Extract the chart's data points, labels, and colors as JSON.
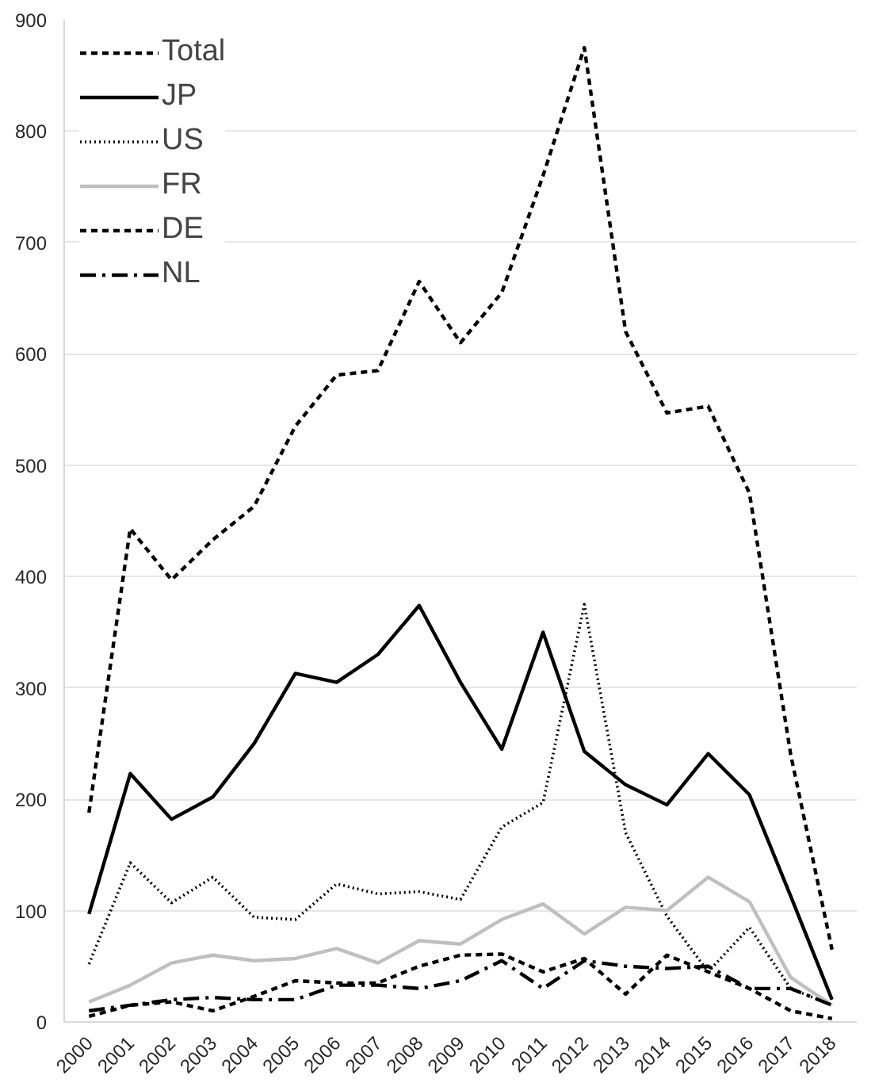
{
  "chart_data": {
    "type": "line",
    "categories": [
      "2000",
      "2001",
      "2002",
      "2003",
      "2004",
      "2005",
      "2006",
      "2007",
      "2008",
      "2009",
      "2010",
      "2011",
      "2012",
      "2013",
      "2014",
      "2015",
      "2016",
      "2017",
      "2018"
    ],
    "series": [
      {
        "name": "Total",
        "color": "#000000",
        "line_style": "dashed",
        "values": [
          188,
          443,
          397,
          433,
          463,
          535,
          581,
          585,
          665,
          610,
          655,
          760,
          875,
          620,
          547,
          553,
          475,
          240,
          65
        ]
      },
      {
        "name": "JP",
        "color": "#000000",
        "line_style": "solid",
        "values": [
          97,
          223,
          182,
          202,
          250,
          313,
          305,
          330,
          374,
          305,
          245,
          350,
          243,
          213,
          195,
          241,
          204,
          113,
          20
        ]
      },
      {
        "name": "US",
        "color": "#000000",
        "line_style": "dotted",
        "values": [
          52,
          143,
          107,
          130,
          94,
          92,
          124,
          115,
          117,
          110,
          175,
          197,
          375,
          170,
          95,
          45,
          85,
          30,
          15
        ]
      },
      {
        "name": "FR",
        "color": "#bfbfbf",
        "line_style": "solid",
        "values": [
          18,
          33,
          53,
          60,
          55,
          57,
          66,
          53,
          73,
          70,
          92,
          106,
          79,
          103,
          100,
          130,
          108,
          40,
          15
        ]
      },
      {
        "name": "DE",
        "color": "#000000",
        "line_style": "dashed",
        "values": [
          5,
          15,
          18,
          10,
          23,
          37,
          35,
          35,
          50,
          60,
          61,
          45,
          57,
          25,
          60,
          45,
          30,
          10,
          3
        ]
      },
      {
        "name": "NL",
        "color": "#000000",
        "line_style": "dashdot",
        "values": [
          10,
          15,
          20,
          22,
          20,
          20,
          33,
          33,
          30,
          37,
          55,
          30,
          55,
          50,
          48,
          50,
          30,
          30,
          15
        ]
      }
    ],
    "ylim": [
      0,
      900
    ],
    "yticks": [
      0,
      100,
      200,
      300,
      400,
      500,
      600,
      700,
      800,
      900
    ],
    "grid": "y",
    "legend": "top left",
    "marker": "none"
  }
}
